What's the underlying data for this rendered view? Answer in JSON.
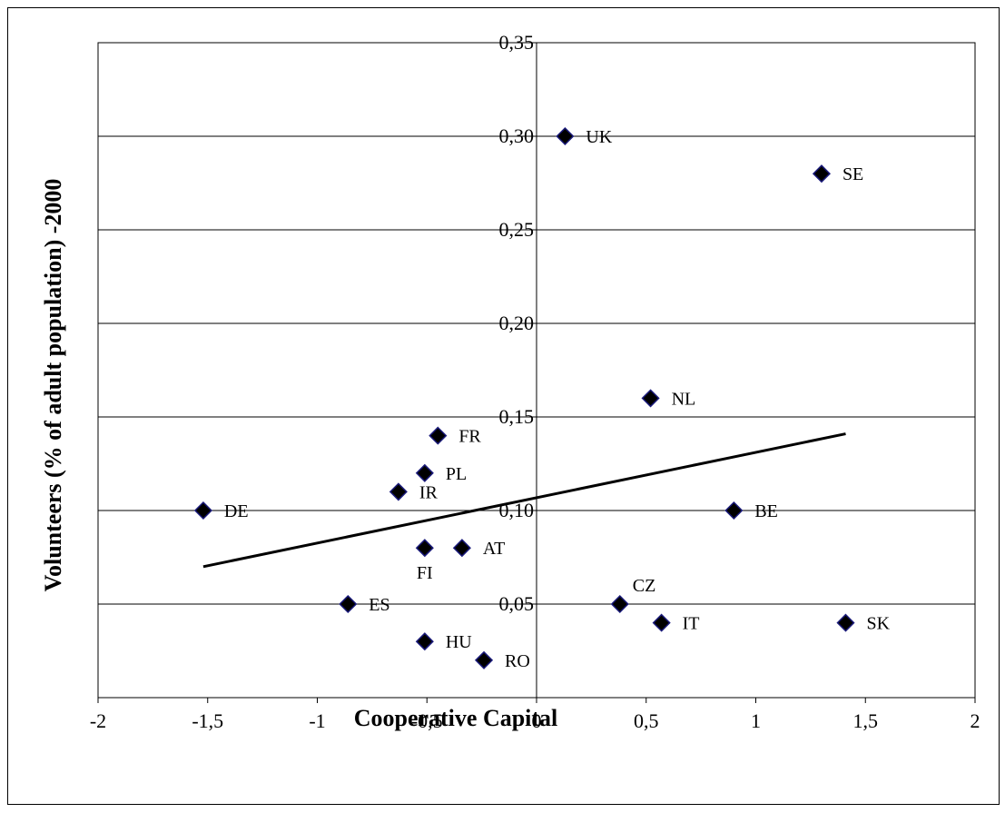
{
  "chart_data": {
    "type": "scatter",
    "title": "",
    "xlabel": "Cooperative Capital",
    "ylabel": "Volunteers (% of adult population) -2000",
    "xlim": [
      -2,
      2
    ],
    "ylim": [
      0,
      0.35
    ],
    "xticks": [
      -2,
      -1.5,
      -1,
      -0.5,
      0,
      0.5,
      1,
      1.5,
      2
    ],
    "xtick_labels": [
      "-2",
      "-1,5",
      "-1",
      "-0,5",
      "0",
      "0,5",
      "1",
      "1,5",
      "2"
    ],
    "yticks": [
      0.05,
      0.1,
      0.15,
      0.2,
      0.25,
      0.3,
      0.35
    ],
    "ytick_labels": [
      "0,05",
      "0,10",
      "0,15",
      "0,20",
      "0,25",
      "0,30",
      "0,35"
    ],
    "grid": "horizontal",
    "marker_color": "#000000",
    "marker_edge_color": "#1a1a7a",
    "points": [
      {
        "label": "UK",
        "x": 0.13,
        "y": 0.3
      },
      {
        "label": "SE",
        "x": 1.3,
        "y": 0.28
      },
      {
        "label": "NL",
        "x": 0.52,
        "y": 0.16
      },
      {
        "label": "FR",
        "x": -0.45,
        "y": 0.14
      },
      {
        "label": "PL",
        "x": -0.51,
        "y": 0.12
      },
      {
        "label": "IR",
        "x": -0.63,
        "y": 0.11
      },
      {
        "label": "DE",
        "x": -1.52,
        "y": 0.1
      },
      {
        "label": "BE",
        "x": 0.9,
        "y": 0.1
      },
      {
        "label": "FI",
        "x": -0.51,
        "y": 0.08
      },
      {
        "label": "AT",
        "x": -0.34,
        "y": 0.08
      },
      {
        "label": "CZ",
        "x": 0.38,
        "y": 0.05
      },
      {
        "label": "ES",
        "x": -0.86,
        "y": 0.05
      },
      {
        "label": "IT",
        "x": 0.57,
        "y": 0.04
      },
      {
        "label": "SK",
        "x": 1.41,
        "y": 0.04
      },
      {
        "label": "HU",
        "x": -0.51,
        "y": 0.03
      },
      {
        "label": "RO",
        "x": -0.24,
        "y": 0.02
      }
    ],
    "trendline": {
      "x": [
        -1.52,
        1.41
      ],
      "y": [
        0.07,
        0.141
      ]
    }
  }
}
